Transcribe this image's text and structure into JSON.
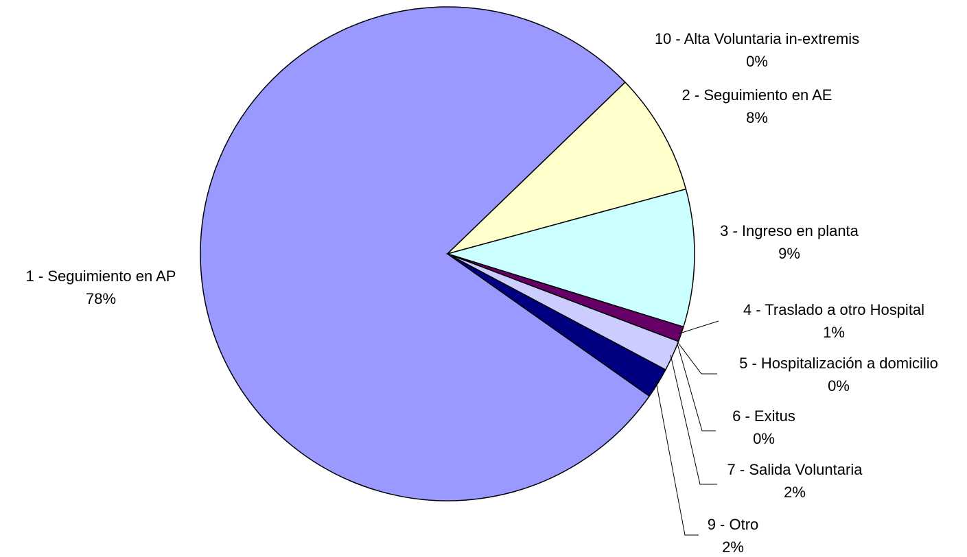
{
  "chart_data": {
    "type": "pie",
    "categories": [
      "1 - Seguimiento en AP",
      "10 - Alta Voluntaria in-extremis",
      "2 - Seguimiento en AE",
      "3 - Ingreso en planta",
      "4 - Traslado a otro Hospital",
      "5 - Hospitalización a domicilio",
      "6 - Exitus",
      "7 - Salida Voluntaria",
      "9 - Otro"
    ],
    "values": [
      78,
      0,
      8,
      9,
      1,
      0,
      0,
      2,
      2
    ],
    "value_labels": [
      "78%",
      "0%",
      "8%",
      "9%",
      "1%",
      "0%",
      "0%",
      "2%",
      "2%"
    ],
    "colors": [
      "#9999ff",
      "#993366",
      "#ffffcc",
      "#ccffff",
      "#660066",
      "#ff8080",
      "#0066cc",
      "#ccccff",
      "#000080"
    ]
  }
}
